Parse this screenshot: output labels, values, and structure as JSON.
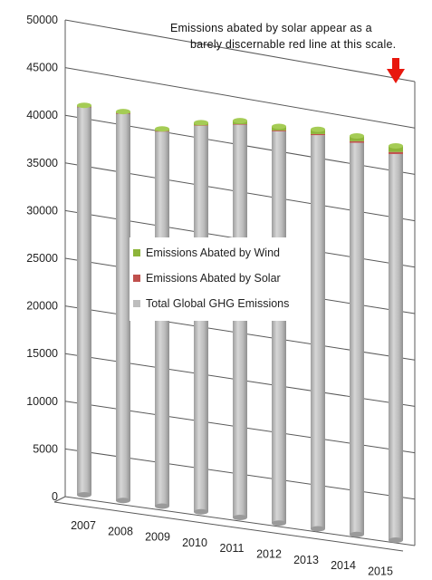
{
  "colors": {
    "wind": "#8DB53A",
    "solar": "#C0504D",
    "total": "#BDBDBD",
    "grid": "#595959",
    "arrow": "#E8170D"
  },
  "chart_data": {
    "type": "bar",
    "title": "",
    "xlabel": "",
    "ylabel": "",
    "ylim": [
      0,
      50000
    ],
    "y_ticks": [
      "0",
      "5000",
      "10000",
      "15000",
      "20000",
      "25000",
      "30000",
      "35000",
      "40000",
      "45000",
      "50000"
    ],
    "categories": [
      "2007",
      "2008",
      "2009",
      "2010",
      "2011",
      "2012",
      "2013",
      "2014",
      "2015"
    ],
    "series": [
      {
        "name": "Total Global GHG Emissions",
        "values": [
          40700,
          40800,
          39700,
          41100,
          42000,
          42100,
          42500,
          42500,
          42100
        ]
      },
      {
        "name": "Emissions Abated by Solar",
        "values": [
          6,
          10,
          19,
          31,
          57,
          90,
          120,
          170,
          220
        ]
      },
      {
        "name": "Emissions Abated by Wind",
        "values": [
          140,
          180,
          230,
          280,
          370,
          430,
          510,
          570,
          660
        ]
      }
    ],
    "legend": {
      "placement": "center",
      "entries": [
        "Emissions Abated by Wind",
        "Emissions Abated by Solar",
        "Total Global GHG Emissions"
      ]
    },
    "grid": true,
    "annotation": {
      "line1": "Emissions abated by solar appear as a",
      "line2": "barely discernable red line at this scale."
    }
  }
}
